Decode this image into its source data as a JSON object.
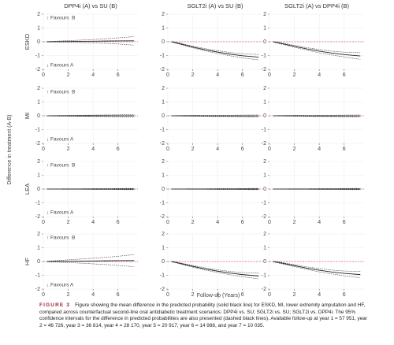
{
  "figure": {
    "ylabel": "Difference in treatment (A-B)",
    "xlabel": "Follow-up (Years)",
    "caption_label": "FIGURE 3",
    "caption": "Figure showing the mean difference in the predicted probability (solid black line) for ESKD, MI, lower extremity amputation and HF, compared across counterfactual second-line oral antidiabetic treatment scenarios: DPP4i vs. SU; SGLT2i vs. SU; SGLT2i vs. DPP4i. The 95% confidence intervals for the difference in predicted probabilities are also presented (dashed black lines). Available follow-up at year 1 = 57 951, year 2 = 46 726, year 3 = 36 814, year 4 = 28 170, year 5 = 20 917, year 6 = 14 988, and year 7 = 10 035."
  },
  "chart_data": [
    {
      "type": "line",
      "title": "DPP4i (A) vs SU (B)",
      "ylabel": "ESKD",
      "annotations": [
        "↑ Favours  B",
        "↓ Favours A"
      ],
      "x": [
        0.3,
        1,
        2,
        3,
        4,
        5,
        6,
        7.3
      ],
      "xlim": [
        0,
        7.6
      ],
      "ylim": [
        -2,
        2
      ],
      "xticks": [
        0,
        2,
        4,
        6
      ],
      "yticks": [
        -2,
        -1,
        0,
        1,
        2
      ],
      "reference_line": 0,
      "reference_color": "#e06060",
      "grid": true,
      "series": [
        {
          "color": "#222",
          "line_style": "solid",
          "values": [
            0,
            0.01,
            0.02,
            0.03,
            0.04,
            0.05,
            0.06,
            0.07
          ]
        },
        {
          "color": "#444",
          "line_style": "dashed",
          "values": [
            -0.02,
            -0.02,
            -0.04,
            -0.06,
            -0.09,
            -0.12,
            -0.16,
            -0.25
          ]
        },
        {
          "color": "#444",
          "line_style": "dashed",
          "values": [
            0.02,
            0.04,
            0.08,
            0.12,
            0.16,
            0.22,
            0.28,
            0.38
          ]
        }
      ]
    },
    {
      "type": "line",
      "title": "SGLT2i (A) vs SU (B)",
      "x": [
        0.3,
        1,
        2,
        3,
        4,
        5,
        6,
        7.3
      ],
      "xlim": [
        0,
        7.6
      ],
      "ylim": [
        -2,
        2
      ],
      "xticks": [
        0,
        2,
        4,
        6
      ],
      "yticks": [
        -2,
        -1,
        0,
        1,
        2
      ],
      "reference_line": 0,
      "reference_color": "#e06060",
      "grid": true,
      "series": [
        {
          "color": "#222",
          "line_style": "solid",
          "values": [
            0,
            -0.15,
            -0.38,
            -0.58,
            -0.75,
            -0.9,
            -1.02,
            -1.12
          ]
        },
        {
          "color": "#444",
          "line_style": "dashed",
          "values": [
            -0.02,
            -0.19,
            -0.44,
            -0.66,
            -0.85,
            -1.02,
            -1.17,
            -1.32
          ]
        },
        {
          "color": "#444",
          "line_style": "dashed",
          "values": [
            0.02,
            -0.11,
            -0.32,
            -0.5,
            -0.65,
            -0.78,
            -0.87,
            -0.92
          ]
        }
      ]
    },
    {
      "type": "line",
      "title": "SGLT2i (A) vs DPP4i (B)",
      "x": [
        0.3,
        1,
        2,
        3,
        4,
        5,
        6,
        7.3
      ],
      "xlim": [
        0,
        7.6
      ],
      "ylim": [
        -2,
        2
      ],
      "xticks": [
        0,
        2,
        4,
        6
      ],
      "yticks": [
        -2,
        -1,
        0,
        1,
        2
      ],
      "reference_line": 0,
      "reference_color": "#e06060",
      "grid": true,
      "series": [
        {
          "color": "#222",
          "line_style": "solid",
          "values": [
            0,
            -0.13,
            -0.33,
            -0.52,
            -0.68,
            -0.82,
            -0.93,
            -1.03
          ]
        },
        {
          "color": "#444",
          "line_style": "dashed",
          "values": [
            -0.02,
            -0.18,
            -0.4,
            -0.61,
            -0.8,
            -0.96,
            -1.1,
            -1.28
          ]
        },
        {
          "color": "#444",
          "line_style": "dashed",
          "values": [
            0.02,
            -0.08,
            -0.26,
            -0.43,
            -0.56,
            -0.68,
            -0.76,
            -0.8
          ]
        }
      ]
    },
    {
      "type": "line",
      "ylabel": "MI",
      "annotations": [
        "↑ Favours  B",
        "↓ Favours A"
      ],
      "x": [
        0.3,
        1,
        2,
        3,
        4,
        5,
        6,
        7.3
      ],
      "xlim": [
        0,
        7.6
      ],
      "ylim": [
        -2,
        2
      ],
      "xticks": [
        0,
        2,
        4,
        6
      ],
      "yticks": [
        -2,
        -1,
        0,
        1,
        2
      ],
      "reference_line": 0,
      "reference_color": "#e06060",
      "grid": true,
      "series": [
        {
          "color": "#222",
          "line_style": "solid",
          "values": [
            0,
            0,
            0,
            0,
            0,
            0,
            0,
            0
          ]
        },
        {
          "color": "#444",
          "line_style": "dashed",
          "values": [
            -0.01,
            -0.02,
            -0.03,
            -0.04,
            -0.05,
            -0.06,
            -0.07,
            -0.09
          ]
        },
        {
          "color": "#444",
          "line_style": "dashed",
          "values": [
            0.01,
            0.02,
            0.03,
            0.04,
            0.05,
            0.06,
            0.07,
            0.09
          ]
        }
      ]
    },
    {
      "type": "line",
      "x": [
        0.3,
        1,
        2,
        3,
        4,
        5,
        6,
        7.3
      ],
      "xlim": [
        0,
        7.6
      ],
      "ylim": [
        -2,
        2
      ],
      "xticks": [
        0,
        2,
        4,
        6
      ],
      "yticks": [
        -2,
        -1,
        0,
        1,
        2
      ],
      "reference_line": 0,
      "reference_color": "#e06060",
      "grid": true,
      "series": [
        {
          "color": "#222",
          "line_style": "solid",
          "values": [
            0,
            0,
            0,
            -0.01,
            -0.01,
            -0.01,
            -0.01,
            -0.01
          ]
        },
        {
          "color": "#444",
          "line_style": "dashed",
          "values": [
            -0.01,
            -0.02,
            -0.03,
            -0.04,
            -0.05,
            -0.06,
            -0.07,
            -0.08
          ]
        },
        {
          "color": "#444",
          "line_style": "dashed",
          "values": [
            0.01,
            0.02,
            0.03,
            0.03,
            0.04,
            0.04,
            0.05,
            0.06
          ]
        }
      ]
    },
    {
      "type": "line",
      "x": [
        0.3,
        1,
        2,
        3,
        4,
        5,
        6,
        7.3
      ],
      "xlim": [
        0,
        7.6
      ],
      "ylim": [
        -2,
        2
      ],
      "xticks": [
        0,
        2,
        4,
        6
      ],
      "yticks": [
        -2,
        -1,
        0,
        1,
        2
      ],
      "reference_line": 0,
      "reference_color": "#e06060",
      "grid": true,
      "series": [
        {
          "color": "#222",
          "line_style": "solid",
          "values": [
            0,
            0,
            0,
            -0.01,
            -0.01,
            -0.01,
            -0.01,
            -0.01
          ]
        },
        {
          "color": "#444",
          "line_style": "dashed",
          "values": [
            -0.01,
            -0.02,
            -0.03,
            -0.04,
            -0.05,
            -0.06,
            -0.07,
            -0.08
          ]
        },
        {
          "color": "#444",
          "line_style": "dashed",
          "values": [
            0.01,
            0.02,
            0.03,
            0.03,
            0.04,
            0.04,
            0.05,
            0.06
          ]
        }
      ]
    },
    {
      "type": "line",
      "ylabel": "LEA",
      "annotations": [
        "↑ Favours  B",
        "↓ Favours A"
      ],
      "x": [
        0.3,
        1,
        2,
        3,
        4,
        5,
        6,
        7.3
      ],
      "xlim": [
        0,
        7.6
      ],
      "ylim": [
        -2,
        2
      ],
      "xticks": [
        0,
        2,
        4,
        6
      ],
      "yticks": [
        -2,
        -1,
        0,
        1,
        2
      ],
      "reference_line": 0,
      "reference_color": "#e06060",
      "grid": true,
      "series": [
        {
          "color": "#222",
          "line_style": "solid",
          "values": [
            0,
            0,
            0,
            0,
            0,
            0,
            0,
            0
          ]
        },
        {
          "color": "#444",
          "line_style": "dashed",
          "values": [
            -0.01,
            -0.01,
            -0.02,
            -0.02,
            -0.03,
            -0.03,
            -0.04,
            -0.05
          ]
        },
        {
          "color": "#444",
          "line_style": "dashed",
          "values": [
            0.01,
            0.01,
            0.02,
            0.02,
            0.03,
            0.03,
            0.04,
            0.05
          ]
        }
      ]
    },
    {
      "type": "line",
      "x": [
        0.3,
        1,
        2,
        3,
        4,
        5,
        6,
        7.3
      ],
      "xlim": [
        0,
        7.6
      ],
      "ylim": [
        -2,
        2
      ],
      "xticks": [
        0,
        2,
        4,
        6
      ],
      "yticks": [
        -2,
        -1,
        0,
        1,
        2
      ],
      "reference_line": 0,
      "reference_color": "#e06060",
      "grid": true,
      "series": [
        {
          "color": "#222",
          "line_style": "solid",
          "values": [
            0,
            0,
            0,
            0,
            0,
            0,
            0,
            0
          ]
        },
        {
          "color": "#444",
          "line_style": "dashed",
          "values": [
            -0.01,
            -0.01,
            -0.02,
            -0.02,
            -0.03,
            -0.03,
            -0.04,
            -0.05
          ]
        },
        {
          "color": "#444",
          "line_style": "dashed",
          "values": [
            0.01,
            0.01,
            0.02,
            0.02,
            0.03,
            0.03,
            0.04,
            0.05
          ]
        }
      ]
    },
    {
      "type": "line",
      "x": [
        0.3,
        1,
        2,
        3,
        4,
        5,
        6,
        7.3
      ],
      "xlim": [
        0,
        7.6
      ],
      "ylim": [
        -2,
        2
      ],
      "xticks": [
        0,
        2,
        4,
        6
      ],
      "yticks": [
        -2,
        -1,
        0,
        1,
        2
      ],
      "reference_line": 0,
      "reference_color": "#e06060",
      "grid": true,
      "series": [
        {
          "color": "#222",
          "line_style": "solid",
          "values": [
            0,
            0,
            0,
            0,
            0,
            0,
            0,
            0
          ]
        },
        {
          "color": "#444",
          "line_style": "dashed",
          "values": [
            -0.01,
            -0.01,
            -0.02,
            -0.02,
            -0.03,
            -0.03,
            -0.04,
            -0.05
          ]
        },
        {
          "color": "#444",
          "line_style": "dashed",
          "values": [
            0.01,
            0.01,
            0.02,
            0.02,
            0.03,
            0.03,
            0.04,
            0.05
          ]
        }
      ]
    },
    {
      "type": "line",
      "ylabel": "HF",
      "annotations": [
        "↑ Favours  B",
        "↓ Favours A"
      ],
      "x": [
        0.3,
        1,
        2,
        3,
        4,
        5,
        6,
        7.3
      ],
      "xlim": [
        0,
        7.6
      ],
      "ylim": [
        -2,
        2
      ],
      "xticks": [
        0,
        2,
        4,
        6
      ],
      "yticks": [
        -2,
        -1,
        0,
        1,
        2
      ],
      "reference_line": 0,
      "reference_color": "#e06060",
      "grid": true,
      "series": [
        {
          "color": "#222",
          "line_style": "solid",
          "values": [
            0,
            0.01,
            0.02,
            0.03,
            0.04,
            0.05,
            0.06,
            0.07
          ]
        },
        {
          "color": "#444",
          "line_style": "dashed",
          "values": [
            -0.02,
            -0.04,
            -0.08,
            -0.12,
            -0.17,
            -0.22,
            -0.28,
            -0.38
          ]
        },
        {
          "color": "#444",
          "line_style": "dashed",
          "values": [
            0.02,
            0.06,
            0.12,
            0.18,
            0.24,
            0.3,
            0.38,
            0.5
          ]
        }
      ]
    },
    {
      "type": "line",
      "x": [
        0.3,
        1,
        2,
        3,
        4,
        5,
        6,
        7.3
      ],
      "xlim": [
        0,
        7.6
      ],
      "ylim": [
        -2,
        2
      ],
      "xticks": [
        0,
        2,
        4,
        6
      ],
      "yticks": [
        -2,
        -1,
        0,
        1,
        2
      ],
      "reference_line": 0,
      "reference_color": "#e06060",
      "grid": true,
      "series": [
        {
          "color": "#222",
          "line_style": "solid",
          "values": [
            0,
            -0.14,
            -0.35,
            -0.54,
            -0.7,
            -0.84,
            -0.95,
            -1.05
          ]
        },
        {
          "color": "#444",
          "line_style": "dashed",
          "values": [
            -0.02,
            -0.18,
            -0.41,
            -0.62,
            -0.8,
            -0.96,
            -1.1,
            -1.26
          ]
        },
        {
          "color": "#444",
          "line_style": "dashed",
          "values": [
            0.02,
            -0.1,
            -0.29,
            -0.46,
            -0.6,
            -0.72,
            -0.8,
            -0.84
          ]
        }
      ]
    },
    {
      "type": "line",
      "x": [
        0.3,
        1,
        2,
        3,
        4,
        5,
        6,
        7.3
      ],
      "xlim": [
        0,
        7.6
      ],
      "ylim": [
        -2,
        2
      ],
      "xticks": [
        0,
        2,
        4,
        6
      ],
      "yticks": [
        -2,
        -1,
        0,
        1,
        2
      ],
      "reference_line": 0,
      "reference_color": "#e06060",
      "grid": true,
      "series": [
        {
          "color": "#222",
          "line_style": "solid",
          "values": [
            0,
            -0.12,
            -0.3,
            -0.48,
            -0.63,
            -0.76,
            -0.86,
            -0.95
          ]
        },
        {
          "color": "#444",
          "line_style": "dashed",
          "values": [
            -0.02,
            -0.17,
            -0.37,
            -0.57,
            -0.75,
            -0.9,
            -1.03,
            -1.18
          ]
        },
        {
          "color": "#444",
          "line_style": "dashed",
          "values": [
            0.02,
            -0.07,
            -0.23,
            -0.39,
            -0.51,
            -0.62,
            -0.69,
            -0.72
          ]
        }
      ]
    }
  ]
}
